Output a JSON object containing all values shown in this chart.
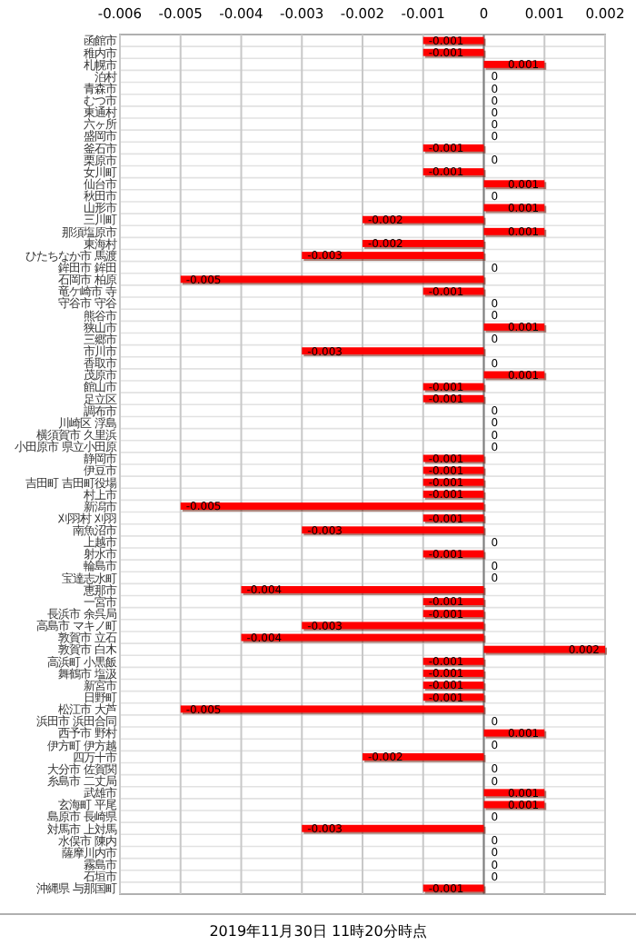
{
  "chart_data": {
    "type": "bar",
    "orientation": "horizontal",
    "categories": [
      "函館市",
      "稚内市",
      "札幌市",
      "泊村",
      "青森市",
      "むつ市",
      "東通村",
      "六ヶ所",
      "盛岡市",
      "釜石市",
      "栗原市",
      "女川町",
      "仙台市",
      "秋田市",
      "山形市",
      "三川町",
      "那須塩原市",
      "東海村",
      "ひたちなか市 馬渡",
      "鉾田市 鉾田",
      "石岡市 柏原",
      "竜ケ崎市 寺",
      "守谷市 守谷",
      "熊谷市",
      "狭山市",
      "三郷市",
      "市川市",
      "香取市",
      "茂原市",
      "館山市",
      "足立区",
      "調布市",
      "川崎区 浮島",
      "横須賀市 久里浜",
      "小田原市 県立小田原",
      "静岡市",
      "伊豆市",
      "吉田町 吉田町役場",
      "村上市",
      "新潟市",
      "刈羽村 刈羽",
      "南魚沼市",
      "上越市",
      "射水市",
      "輪島市",
      "宝達志水町",
      "恵那市",
      "一宮市",
      "長浜市 余呉局",
      "高島市 マキノ町",
      "敦賀市 立石",
      "敦賀市 白木",
      "高浜町 小黒飯",
      "舞鶴市 塩汲",
      "新宮市",
      "日野町",
      "松江市 大芦",
      "浜田市 浜田合同",
      "西予市 野村",
      "伊方町 伊方越",
      "四万十市",
      "大分市 佐賀関",
      "糸島市 二丈局",
      "武雄市",
      "玄海町 平尾",
      "島原市 長崎県",
      "対馬市 上対馬",
      "水俣市 陳内",
      "薩摩川内市",
      "霧島市",
      "石垣市",
      "沖縄県 与那国町"
    ],
    "values": [
      -0.001,
      -0.001,
      0.001,
      0,
      0,
      0,
      0,
      0,
      0,
      -0.001,
      0,
      -0.001,
      0.001,
      0,
      0.001,
      -0.002,
      0.001,
      -0.002,
      -0.003,
      0,
      -0.005,
      -0.001,
      0,
      0,
      0.001,
      0,
      -0.003,
      0,
      0.001,
      -0.001,
      -0.001,
      0,
      0,
      0,
      0,
      -0.001,
      -0.001,
      -0.001,
      -0.001,
      -0.005,
      -0.001,
      -0.003,
      0,
      -0.001,
      0,
      0,
      -0.004,
      -0.001,
      -0.001,
      -0.003,
      -0.004,
      0.002,
      -0.001,
      -0.001,
      -0.001,
      -0.001,
      -0.005,
      0,
      0.001,
      0,
      -0.002,
      0,
      0,
      0.001,
      0.001,
      0,
      -0.003,
      0,
      0,
      0,
      0,
      -0.001
    ],
    "color": "#ff0000",
    "xlim": [
      -0.006,
      0.002
    ],
    "xticks": [
      -0.006,
      -0.005,
      -0.004,
      -0.003,
      -0.002,
      -0.001,
      0,
      0.001,
      0.002
    ],
    "grid": true,
    "data_labels": true,
    "annotations": [
      "2019年11月30日 11時20分時点"
    ]
  }
}
